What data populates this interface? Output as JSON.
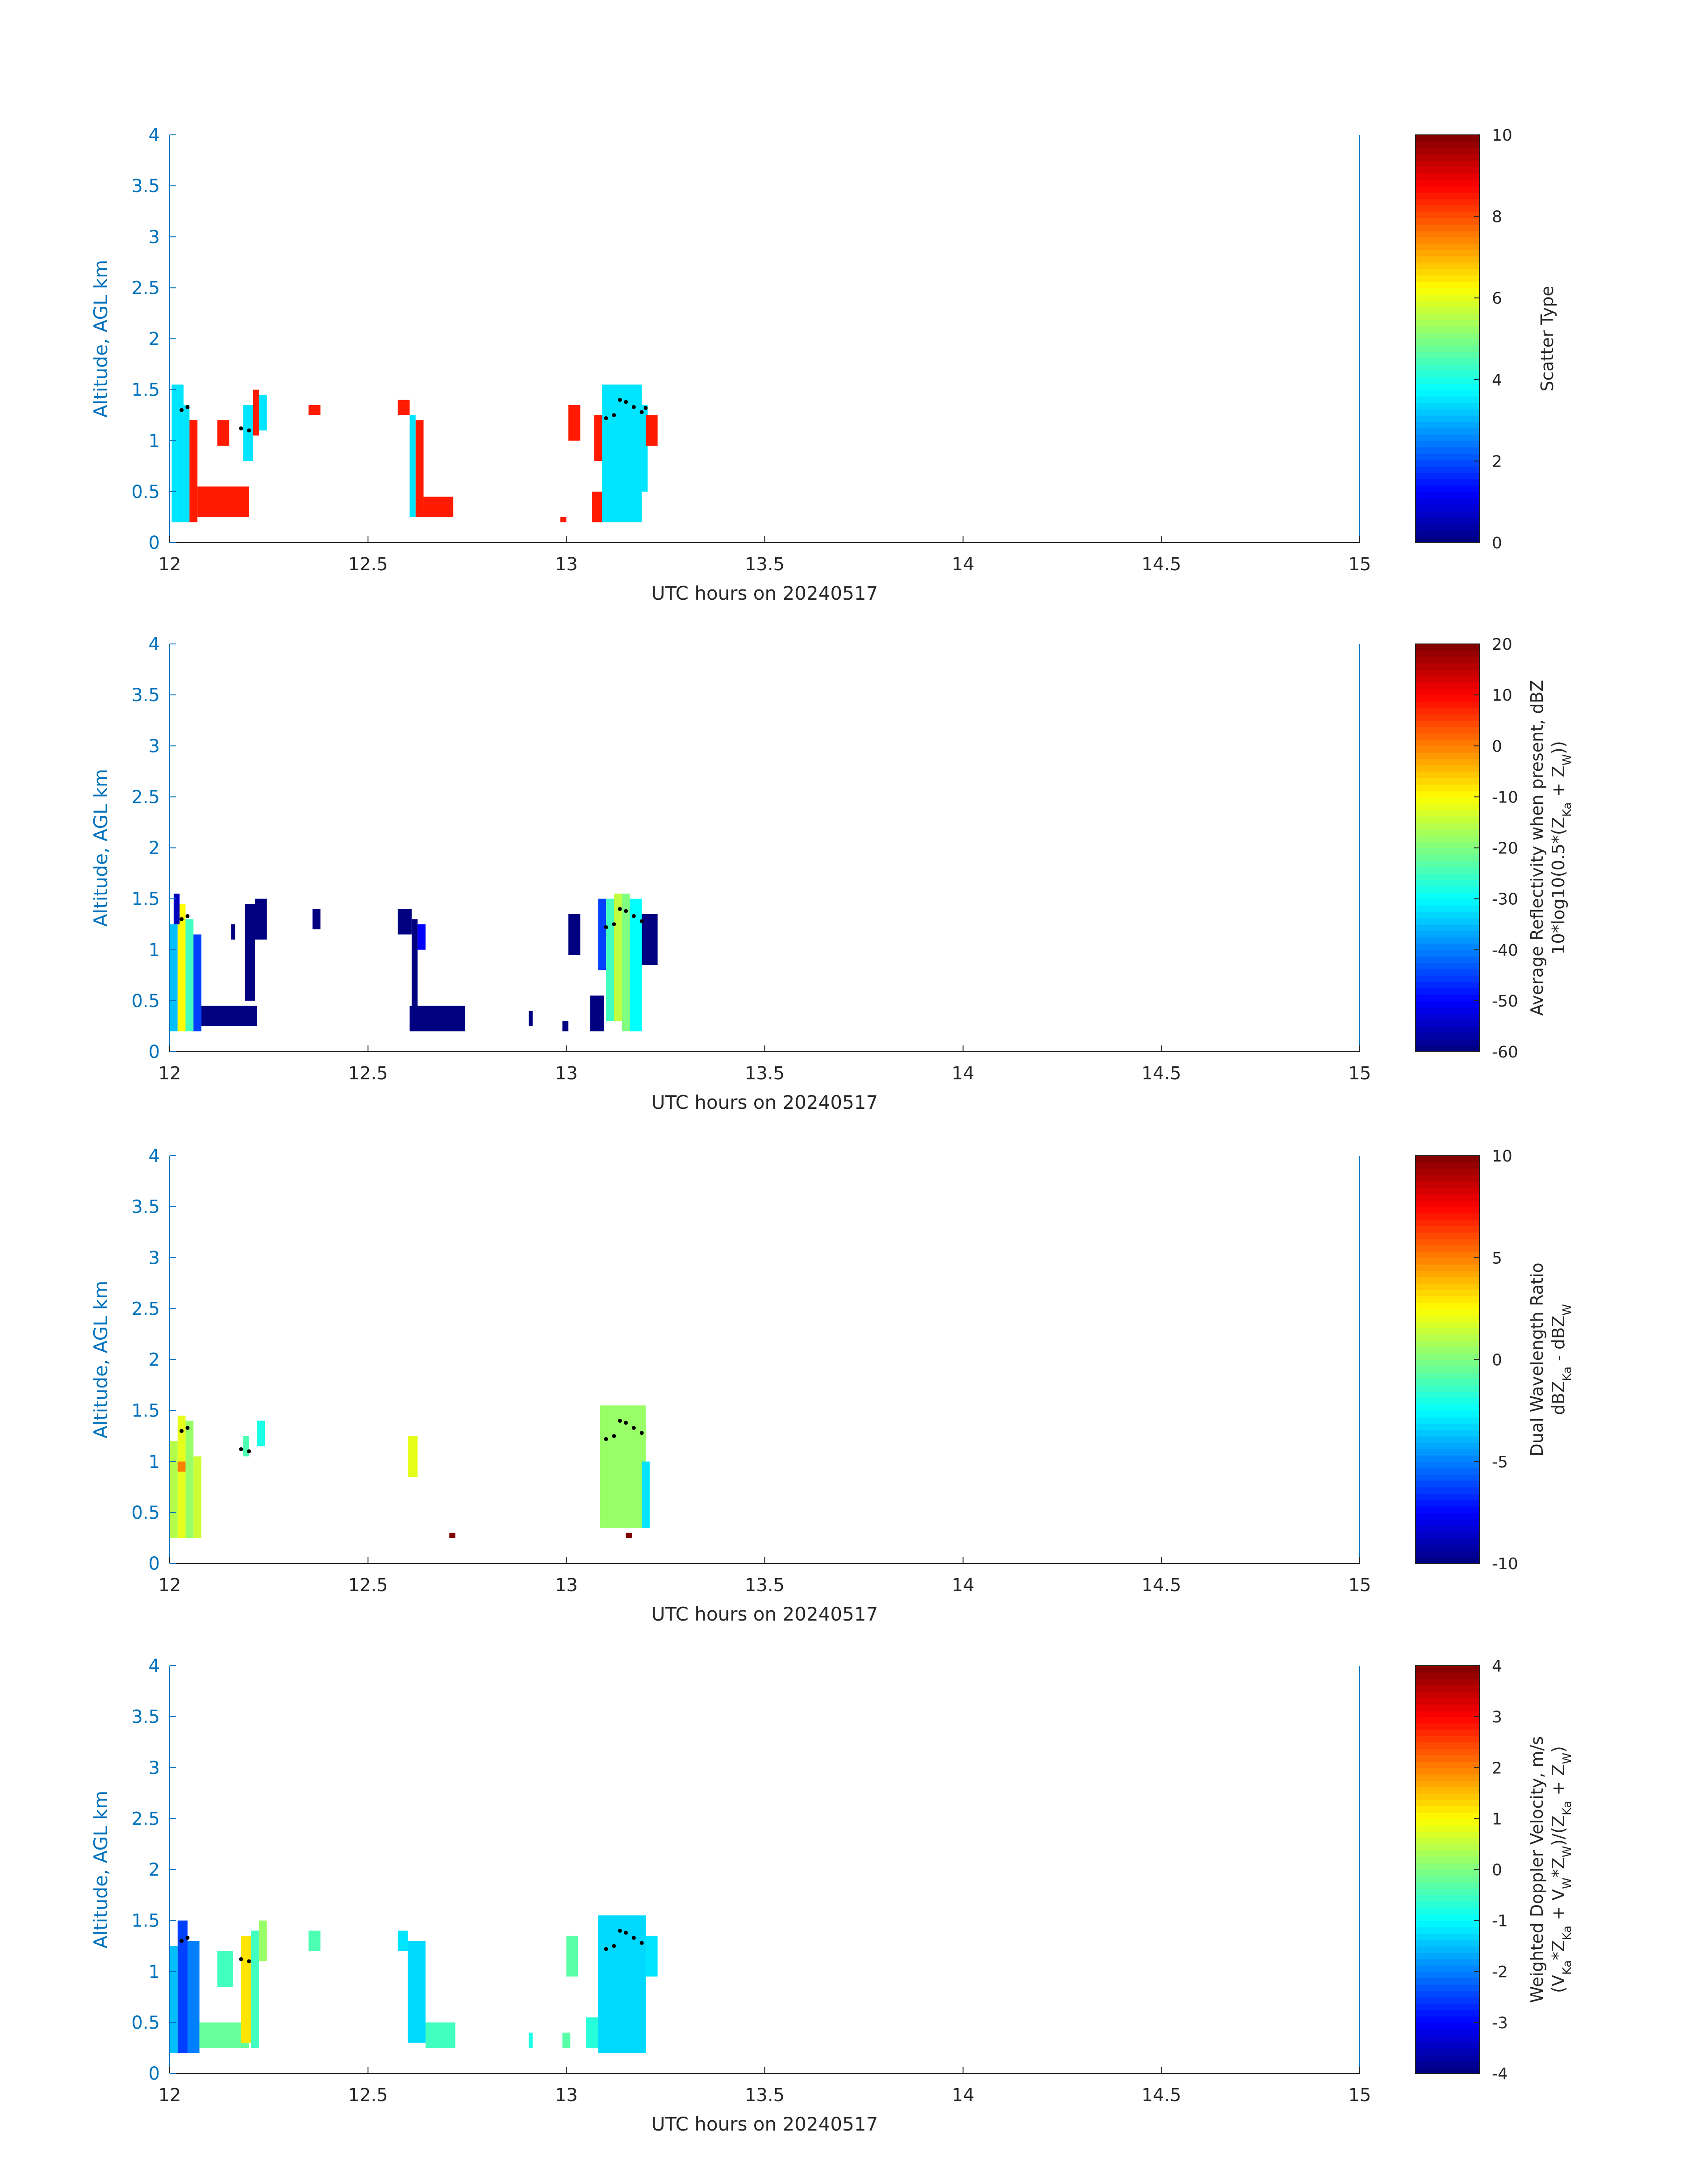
{
  "figure": {
    "x_axis": {
      "range": [
        12,
        15
      ],
      "ticks": [
        12,
        12.5,
        13,
        13.5,
        14,
        14.5,
        15
      ],
      "tick_labels": [
        "12",
        "12.5",
        "13",
        "13.5",
        "14",
        "14.5",
        "15"
      ],
      "label": "UTC hours on 20240517"
    },
    "y_axis": {
      "range": [
        0,
        4
      ],
      "ticks": [
        0,
        0.5,
        1,
        1.5,
        2,
        2.5,
        3,
        3.5,
        4
      ],
      "tick_labels": [
        "0",
        "0.5",
        "1",
        "1.5",
        "2",
        "2.5",
        "3",
        "3.5",
        "4"
      ],
      "label": "Altitude, AGL km"
    },
    "colors": {
      "axis_blue": "#0072BD",
      "text_dark": "#262626",
      "marker": "#000000"
    }
  },
  "chart_data": [
    {
      "type": "heatmap",
      "colormap": "jet",
      "clim": [
        0,
        10
      ],
      "colorbar": {
        "ticks": [
          0,
          2,
          4,
          6,
          8,
          10
        ],
        "tick_labels": [
          "0",
          "2",
          "4",
          "6",
          "8",
          "10"
        ],
        "label": "Scatter Type",
        "label2": ""
      },
      "xlabel": "UTC hours on 20240517",
      "ylabel": "Altitude, AGL km",
      "xlim": [
        12,
        15
      ],
      "ylim": [
        0,
        4
      ],
      "cells": [
        [
          12.005,
          12.035,
          0.2,
          1.55,
          3.5
        ],
        [
          12.035,
          12.05,
          0.2,
          1.35,
          3.5
        ],
        [
          12.05,
          12.07,
          0.2,
          1.2,
          8.5
        ],
        [
          12.07,
          12.2,
          0.25,
          0.55,
          8.5
        ],
        [
          12.12,
          12.15,
          0.95,
          1.2,
          8.5
        ],
        [
          12.185,
          12.21,
          0.8,
          1.35,
          3.5
        ],
        [
          12.21,
          12.225,
          1.05,
          1.5,
          8.5
        ],
        [
          12.225,
          12.245,
          1.1,
          1.45,
          3.5
        ],
        [
          12.35,
          12.38,
          1.25,
          1.35,
          8.5
        ],
        [
          12.575,
          12.605,
          1.25,
          1.4,
          8.5
        ],
        [
          12.605,
          12.62,
          0.25,
          1.25,
          3.5
        ],
        [
          12.62,
          12.64,
          0.25,
          1.2,
          8.5
        ],
        [
          12.64,
          12.715,
          0.25,
          0.45,
          8.5
        ],
        [
          12.985,
          13.0,
          0.2,
          0.25,
          8.5
        ],
        [
          13.005,
          13.035,
          1.0,
          1.35,
          8.5
        ],
        [
          13.065,
          13.09,
          0.2,
          0.5,
          8.5
        ],
        [
          13.07,
          13.1,
          0.8,
          1.25,
          8.5
        ],
        [
          13.09,
          13.19,
          0.2,
          1.55,
          3.5
        ],
        [
          13.19,
          13.205,
          0.5,
          1.35,
          3.5
        ],
        [
          13.2,
          13.23,
          0.95,
          1.25,
          8.5
        ]
      ],
      "markers": [
        [
          12.03,
          1.3
        ],
        [
          12.045,
          1.33
        ],
        [
          12.18,
          1.12
        ],
        [
          12.2,
          1.1
        ],
        [
          13.1,
          1.22
        ],
        [
          13.12,
          1.25
        ],
        [
          13.135,
          1.4
        ],
        [
          13.15,
          1.38
        ],
        [
          13.17,
          1.33
        ],
        [
          13.19,
          1.28
        ],
        [
          13.2,
          1.32
        ]
      ]
    },
    {
      "type": "heatmap",
      "colormap": "jet",
      "clim": [
        -60,
        20
      ],
      "colorbar": {
        "ticks": [
          -60,
          -50,
          -40,
          -30,
          -20,
          -10,
          0,
          10,
          20
        ],
        "tick_labels": [
          "-60",
          "-50",
          "-40",
          "-30",
          "-20",
          "-10",
          "0",
          "10",
          "20"
        ],
        "label": "Average Reflectivity when present, dBZ",
        "label2": "10*log10(0.5*(Z_Ka + Z_W))"
      },
      "xlabel": "UTC hours on 20240517",
      "ylabel": "Altitude, AGL km",
      "xlim": [
        12,
        15
      ],
      "ylim": [
        0,
        4
      ],
      "cells": [
        [
          12.0,
          12.02,
          0.2,
          1.25,
          -35
        ],
        [
          12.02,
          12.04,
          0.2,
          1.45,
          -10
        ],
        [
          12.04,
          12.06,
          0.2,
          1.3,
          -25
        ],
        [
          12.06,
          12.08,
          0.2,
          1.15,
          -45
        ],
        [
          12.01,
          12.025,
          1.25,
          1.55,
          -55
        ],
        [
          12.08,
          12.22,
          0.25,
          0.45,
          -60
        ],
        [
          12.155,
          12.165,
          1.1,
          1.25,
          -60
        ],
        [
          12.19,
          12.215,
          0.5,
          1.45,
          -60
        ],
        [
          12.215,
          12.245,
          1.1,
          1.5,
          -60
        ],
        [
          12.36,
          12.38,
          1.2,
          1.4,
          -60
        ],
        [
          12.575,
          12.61,
          1.15,
          1.4,
          -60
        ],
        [
          12.61,
          12.625,
          0.25,
          1.3,
          -60
        ],
        [
          12.625,
          12.645,
          1.0,
          1.25,
          -50
        ],
        [
          12.605,
          12.745,
          0.2,
          0.45,
          -60
        ],
        [
          12.905,
          12.915,
          0.25,
          0.4,
          -60
        ],
        [
          12.99,
          13.005,
          0.2,
          0.3,
          -60
        ],
        [
          13.005,
          13.035,
          0.95,
          1.35,
          -60
        ],
        [
          13.06,
          13.095,
          0.2,
          0.55,
          -60
        ],
        [
          13.08,
          13.1,
          0.8,
          1.5,
          -45
        ],
        [
          13.1,
          13.12,
          0.3,
          1.5,
          -25
        ],
        [
          13.12,
          13.14,
          0.3,
          1.55,
          -15
        ],
        [
          13.14,
          13.16,
          0.2,
          1.55,
          -20
        ],
        [
          13.16,
          13.19,
          0.2,
          1.5,
          -30
        ],
        [
          13.19,
          13.23,
          0.85,
          1.35,
          -60
        ]
      ],
      "markers": [
        [
          12.03,
          1.3
        ],
        [
          12.045,
          1.33
        ],
        [
          13.1,
          1.22
        ],
        [
          13.12,
          1.25
        ],
        [
          13.135,
          1.4
        ],
        [
          13.15,
          1.38
        ],
        [
          13.17,
          1.33
        ],
        [
          13.19,
          1.28
        ]
      ]
    },
    {
      "type": "heatmap",
      "colormap": "jet",
      "clim": [
        -10,
        10
      ],
      "colorbar": {
        "ticks": [
          -10,
          -5,
          0,
          5,
          10
        ],
        "tick_labels": [
          "-10",
          "-5",
          "0",
          "5",
          "10"
        ],
        "label": "Dual Wavelength Ratio",
        "label2": "dBZ_Ka - dBZ_W"
      },
      "xlabel": "UTC hours on 20240517",
      "ylabel": "Altitude, AGL km",
      "xlim": [
        12,
        15
      ],
      "ylim": [
        0,
        4
      ],
      "cells": [
        [
          12.0,
          12.02,
          0.25,
          1.2,
          1
        ],
        [
          12.02,
          12.04,
          0.25,
          1.45,
          2
        ],
        [
          12.04,
          12.06,
          0.25,
          1.4,
          0.5
        ],
        [
          12.06,
          12.08,
          0.25,
          1.05,
          1.5
        ],
        [
          12.02,
          12.04,
          0.9,
          1.0,
          5
        ],
        [
          12.185,
          12.2,
          1.05,
          1.25,
          -1
        ],
        [
          12.22,
          12.24,
          1.15,
          1.4,
          -2
        ],
        [
          12.6,
          12.625,
          0.85,
          1.25,
          2
        ],
        [
          12.705,
          12.72,
          0.25,
          0.3,
          10
        ],
        [
          13.085,
          13.2,
          0.35,
          1.55,
          0.5
        ],
        [
          13.15,
          13.165,
          0.25,
          0.3,
          10
        ],
        [
          13.19,
          13.21,
          0.35,
          1.0,
          -3
        ]
      ],
      "markers": [
        [
          12.03,
          1.3
        ],
        [
          12.045,
          1.33
        ],
        [
          12.18,
          1.12
        ],
        [
          12.2,
          1.1
        ],
        [
          13.1,
          1.22
        ],
        [
          13.12,
          1.25
        ],
        [
          13.135,
          1.4
        ],
        [
          13.15,
          1.38
        ],
        [
          13.17,
          1.33
        ],
        [
          13.19,
          1.28
        ]
      ]
    },
    {
      "type": "heatmap",
      "colormap": "jet",
      "clim": [
        -4,
        4
      ],
      "colorbar": {
        "ticks": [
          -4,
          -3,
          -2,
          -1,
          0,
          1,
          2,
          3,
          4
        ],
        "tick_labels": [
          "-4",
          "-3",
          "-2",
          "-1",
          "0",
          "1",
          "2",
          "3",
          "4"
        ],
        "label": "Weighted Doppler Velocity, m/s",
        "label2": "(V_Ka*Z_Ka + V_W*Z_W)/(Z_Ka + Z_W)"
      },
      "xlabel": "UTC hours on 20240517",
      "ylabel": "Altitude, AGL km",
      "xlim": [
        12,
        15
      ],
      "ylim": [
        0,
        4
      ],
      "cells": [
        [
          12.0,
          12.02,
          0.2,
          1.25,
          -1.5
        ],
        [
          12.02,
          12.045,
          0.2,
          1.5,
          -2.5
        ],
        [
          12.045,
          12.075,
          0.2,
          1.3,
          -2.0
        ],
        [
          12.075,
          12.2,
          0.25,
          0.5,
          -0.2
        ],
        [
          12.12,
          12.16,
          0.85,
          1.2,
          -0.5
        ],
        [
          12.18,
          12.205,
          0.3,
          1.35,
          1.2
        ],
        [
          12.205,
          12.225,
          0.25,
          1.4,
          -0.5
        ],
        [
          12.225,
          12.245,
          1.1,
          1.5,
          0.2
        ],
        [
          12.35,
          12.38,
          1.2,
          1.4,
          -0.4
        ],
        [
          12.575,
          12.6,
          1.2,
          1.4,
          -1.2
        ],
        [
          12.6,
          12.645,
          0.3,
          1.3,
          -1.3
        ],
        [
          12.645,
          12.72,
          0.25,
          0.5,
          -0.5
        ],
        [
          12.905,
          12.915,
          0.25,
          0.4,
          -0.8
        ],
        [
          12.99,
          13.01,
          0.25,
          0.4,
          -0.3
        ],
        [
          13.0,
          13.03,
          0.95,
          1.35,
          -0.3
        ],
        [
          13.05,
          13.08,
          0.25,
          0.55,
          -0.7
        ],
        [
          13.08,
          13.2,
          0.2,
          1.55,
          -1.3
        ],
        [
          13.2,
          13.23,
          0.95,
          1.35,
          -1.2
        ]
      ],
      "markers": [
        [
          12.03,
          1.3
        ],
        [
          12.045,
          1.33
        ],
        [
          12.18,
          1.12
        ],
        [
          12.2,
          1.1
        ],
        [
          13.1,
          1.22
        ],
        [
          13.12,
          1.25
        ],
        [
          13.135,
          1.4
        ],
        [
          13.15,
          1.38
        ],
        [
          13.17,
          1.33
        ],
        [
          13.19,
          1.28
        ]
      ]
    }
  ]
}
